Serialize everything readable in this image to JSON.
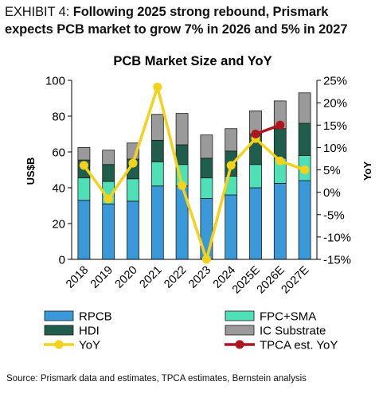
{
  "exhibit": {
    "label": "EXHIBIT 4:",
    "title": "Following 2025 strong rebound, Prismark expects PCB market to grow 7% in 2026 and 5% in 2027"
  },
  "source": "Source: Prismark data and estimates, TPCA estimates, Bernstein analysis",
  "colors": {
    "RPCB": "#3a9ad9",
    "FPC+SMA": "#4fe0b8",
    "HDI": "#1f5e4c",
    "IC Substrate": "#9a9a9a",
    "YoY": "#f5d21a",
    "TPCA est. YoY": "#b0141e"
  },
  "chart_data": {
    "type": "bar",
    "stacked": true,
    "title": "PCB Market Size and YoY",
    "ylabel": "US$B",
    "y2label": "YoY",
    "ylim": [
      0,
      100
    ],
    "y2lim": [
      -15,
      25
    ],
    "yticks": [
      "0",
      "20",
      "40",
      "60",
      "80",
      "100"
    ],
    "y2ticks": [
      "-15%",
      "-10%",
      "-5%",
      "0%",
      "5%",
      "10%",
      "15%",
      "20%",
      "25%"
    ],
    "categories": [
      "2018",
      "2019",
      "2020",
      "2021",
      "2022",
      "2023",
      "2024",
      "2025E",
      "2026E",
      "2027E"
    ],
    "series": [
      {
        "name": "RPCB",
        "values": [
          33,
          31,
          32.5,
          41,
          41,
          34,
          36,
          40,
          42.5,
          44
        ]
      },
      {
        "name": "FPC+SMA",
        "values": [
          12.5,
          12.5,
          12.5,
          13.5,
          12,
          11.5,
          10.5,
          13,
          14,
          14
        ]
      },
      {
        "name": "HDI",
        "values": [
          10,
          9.5,
          11,
          12,
          11,
          11,
          14,
          17,
          16.5,
          18
        ]
      },
      {
        "name": "IC Substrate",
        "values": [
          7,
          8,
          9,
          14.5,
          17.5,
          13,
          12.5,
          13,
          15.5,
          17
        ]
      }
    ],
    "lines": [
      {
        "name": "YoY",
        "values": [
          6,
          -1.5,
          6.5,
          23.5,
          1.5,
          -15,
          6,
          12,
          7,
          5
        ]
      },
      {
        "name": "TPCA est. YoY",
        "categories": [
          "2025E",
          "2026E"
        ],
        "values": [
          13,
          15
        ]
      }
    ],
    "legend": [
      "RPCB",
      "FPC+SMA",
      "HDI",
      "IC Substrate",
      "YoY",
      "TPCA est. YoY"
    ],
    "legend_position": "bottom"
  }
}
